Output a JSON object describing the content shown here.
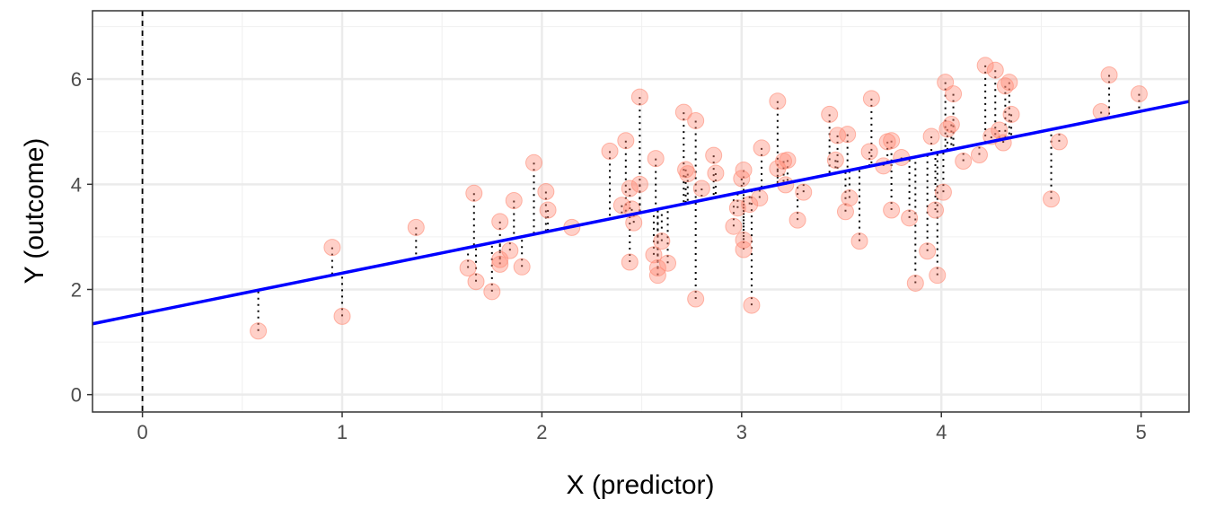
{
  "chart_data": {
    "type": "scatter",
    "title": "",
    "xlabel": "X (predictor)",
    "ylabel": "Y (outcome)",
    "xlim": [
      -0.25,
      5.24
    ],
    "ylim": [
      -0.33,
      7.3
    ],
    "xticks": [
      0,
      1,
      2,
      3,
      4,
      5
    ],
    "yticks": [
      0,
      2,
      4,
      6
    ],
    "grid": true,
    "reference_line": {
      "type": "vertical",
      "x": 0,
      "style": "dashed",
      "color": "#000000"
    },
    "regression_line": {
      "intercept": 1.54,
      "slope": 0.77,
      "color": "#0000ff"
    },
    "residual_lines": {
      "style": "dotted",
      "color": "#000000"
    },
    "point_color": "#ff8a75",
    "points": [
      [
        0.58,
        1.21
      ],
      [
        0.95,
        2.8
      ],
      [
        1.0,
        1.49
      ],
      [
        1.37,
        3.18
      ],
      [
        1.63,
        2.41
      ],
      [
        1.66,
        3.83
      ],
      [
        1.67,
        2.15
      ],
      [
        1.75,
        1.96
      ],
      [
        1.79,
        3.29
      ],
      [
        1.79,
        2.48
      ],
      [
        1.79,
        2.57
      ],
      [
        1.84,
        2.74
      ],
      [
        1.86,
        3.69
      ],
      [
        1.9,
        2.43
      ],
      [
        1.96,
        4.41
      ],
      [
        2.02,
        3.86
      ],
      [
        2.03,
        3.51
      ],
      [
        2.15,
        3.18
      ],
      [
        2.34,
        4.63
      ],
      [
        2.4,
        3.6
      ],
      [
        2.42,
        4.83
      ],
      [
        2.44,
        3.92
      ],
      [
        2.44,
        2.52
      ],
      [
        2.45,
        3.53
      ],
      [
        2.46,
        3.27
      ],
      [
        2.49,
        5.66
      ],
      [
        2.49,
        4.0
      ],
      [
        2.57,
        4.49
      ],
      [
        2.56,
        2.66
      ],
      [
        2.58,
        2.41
      ],
      [
        2.58,
        2.27
      ],
      [
        2.6,
        2.92
      ],
      [
        2.63,
        2.5
      ],
      [
        2.71,
        5.37
      ],
      [
        2.73,
        4.2
      ],
      [
        2.72,
        4.28
      ],
      [
        2.77,
        5.21
      ],
      [
        2.77,
        1.82
      ],
      [
        2.8,
        3.92
      ],
      [
        2.86,
        4.55
      ],
      [
        2.87,
        4.21
      ],
      [
        2.96,
        3.2
      ],
      [
        2.98,
        3.55
      ],
      [
        3.0,
        4.11
      ],
      [
        3.01,
        4.27
      ],
      [
        3.01,
        2.76
      ],
      [
        3.01,
        2.94
      ],
      [
        3.04,
        3.62
      ],
      [
        3.05,
        1.7
      ],
      [
        3.09,
        3.74
      ],
      [
        3.1,
        4.69
      ],
      [
        3.18,
        5.58
      ],
      [
        3.18,
        4.3
      ],
      [
        3.21,
        4.44
      ],
      [
        3.22,
        3.99
      ],
      [
        3.23,
        4.46
      ],
      [
        3.28,
        3.32
      ],
      [
        3.31,
        3.85
      ],
      [
        3.44,
        5.33
      ],
      [
        3.47,
        4.46
      ],
      [
        3.48,
        4.93
      ],
      [
        3.52,
        3.48
      ],
      [
        3.53,
        4.95
      ],
      [
        3.54,
        3.74
      ],
      [
        3.59,
        2.92
      ],
      [
        3.65,
        5.63
      ],
      [
        3.64,
        4.62
      ],
      [
        3.71,
        4.35
      ],
      [
        3.73,
        4.81
      ],
      [
        3.75,
        4.83
      ],
      [
        3.75,
        3.51
      ],
      [
        3.8,
        4.51
      ],
      [
        3.84,
        3.36
      ],
      [
        3.87,
        2.12
      ],
      [
        3.93,
        2.73
      ],
      [
        3.95,
        4.91
      ],
      [
        3.97,
        3.51
      ],
      [
        3.98,
        2.27
      ],
      [
        4.01,
        3.85
      ],
      [
        4.02,
        5.94
      ],
      [
        4.06,
        5.72
      ],
      [
        4.03,
        5.05
      ],
      [
        4.05,
        5.14
      ],
      [
        4.11,
        4.44
      ],
      [
        4.19,
        4.56
      ],
      [
        4.22,
        6.26
      ],
      [
        4.27,
        6.17
      ],
      [
        4.25,
        4.91
      ],
      [
        4.31,
        4.79
      ],
      [
        4.29,
        5.03
      ],
      [
        4.32,
        5.87
      ],
      [
        4.34,
        5.94
      ],
      [
        4.35,
        5.33
      ],
      [
        4.55,
        3.72
      ],
      [
        4.59,
        4.81
      ],
      [
        4.8,
        5.38
      ],
      [
        4.84,
        6.08
      ],
      [
        4.99,
        5.72
      ]
    ]
  }
}
